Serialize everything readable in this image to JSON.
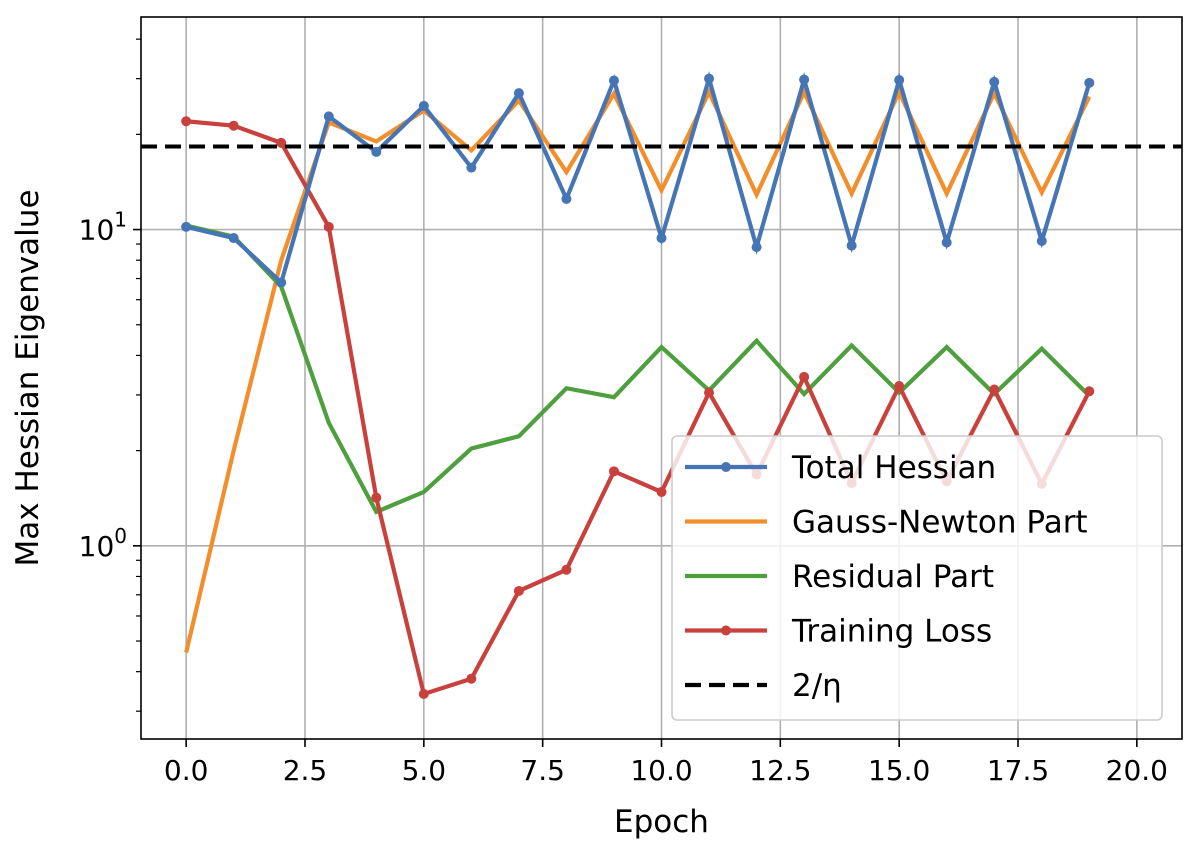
{
  "chart_data": {
    "type": "line",
    "xlabel": "Epoch",
    "ylabel": "Max Hessian Eigenvalue",
    "y_scale": "log",
    "xlim": [
      -0.95,
      20.95
    ],
    "ylim": [
      0.245,
      47.0
    ],
    "xticks": [
      0,
      2.5,
      5,
      7.5,
      10,
      12.5,
      15,
      17.5,
      20
    ],
    "xtick_labels": [
      "0.0",
      "2.5",
      "5.0",
      "7.5",
      "10.0",
      "12.5",
      "15.0",
      "17.5",
      "20.0"
    ],
    "yticks": [
      {
        "value": 1,
        "base": "10",
        "exp": "0"
      },
      {
        "value": 10,
        "base": "10",
        "exp": "1"
      }
    ],
    "grid": true,
    "legend_position": "lower-right",
    "x": [
      0,
      1,
      2,
      3,
      4,
      5,
      6,
      7,
      8,
      9,
      10,
      11,
      12,
      13,
      14,
      15,
      16,
      17,
      18,
      19
    ],
    "series": [
      {
        "name": "Total Hessian",
        "color": "#4575b4",
        "markers": true,
        "dash": false,
        "values": [
          10.2,
          9.4,
          6.8,
          22.8,
          17.6,
          24.6,
          15.7,
          27.0,
          12.5,
          29.6,
          9.4,
          30.0,
          8.8,
          29.8,
          8.9,
          29.7,
          9.1,
          29.3,
          9.2,
          29.1
        ]
      },
      {
        "name": "Gauss-Newton Part",
        "color": "#f28e2b",
        "markers": false,
        "dash": false,
        "values": [
          0.46,
          2.0,
          8.0,
          21.8,
          19.0,
          23.8,
          17.8,
          25.6,
          15.2,
          26.9,
          13.3,
          27.2,
          12.9,
          27.2,
          13.0,
          27.2,
          13.0,
          27.0,
          13.1,
          26.3
        ]
      },
      {
        "name": "Residual Part",
        "color": "#4e9f3d",
        "markers": false,
        "dash": false,
        "values": [
          10.3,
          9.5,
          6.6,
          2.45,
          1.28,
          1.48,
          2.03,
          2.22,
          3.15,
          2.95,
          4.25,
          3.1,
          4.45,
          3.02,
          4.3,
          3.05,
          4.25,
          3.02,
          4.2,
          2.98
        ]
      },
      {
        "name": "Training Loss",
        "color": "#c8413c",
        "markers": true,
        "dash": false,
        "values": [
          22.0,
          21.3,
          18.8,
          10.2,
          1.42,
          0.34,
          0.38,
          0.72,
          0.84,
          1.72,
          1.48,
          3.05,
          1.68,
          3.42,
          1.58,
          3.2,
          1.6,
          3.12,
          1.57,
          3.08
        ]
      },
      {
        "name": "2/η",
        "color": "#000000",
        "markers": false,
        "dash": true,
        "constant": 18.3
      }
    ]
  }
}
